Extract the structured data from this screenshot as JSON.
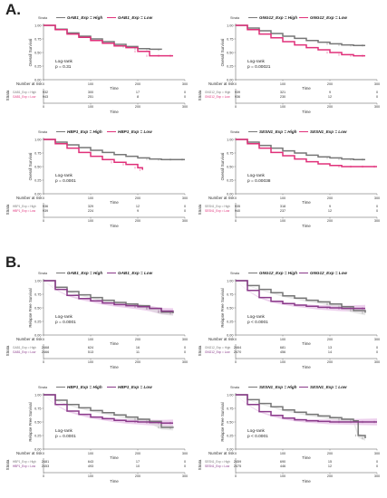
{
  "sections": [
    {
      "letter": "A.",
      "panels": [
        {
          "gene_high": "GAB1_Exp = High",
          "gene_low": "GAB1_Exp = Low",
          "ylabel": "Overall Survival",
          "xlabel": "Time",
          "logrank_label": "Log-rank",
          "p": "p = 0.31",
          "risk_title": "Number at risk",
          "risk_high": [
            "932",
            "300",
            "17",
            "0"
          ],
          "risk_low": [
            "943",
            "251",
            "8",
            "0"
          ],
          "strata_high": "GAB1_Exp = High",
          "strata_low": "GAB1_Exp = Low"
        },
        {
          "gene_high": "GNG12_Exp = High",
          "gene_low": "GNG12_Exp = Low",
          "ylabel": "Overall Survival",
          "xlabel": "Time",
          "logrank_label": "Log-rank",
          "p": "p = 0.00021",
          "risk_title": "Number at risk",
          "risk_high": [
            "939",
            "321",
            "9",
            "0"
          ],
          "risk_low": [
            "936",
            "230",
            "12",
            "0"
          ],
          "strata_high": "GNG12_Exp = High",
          "strata_low": "GNG12_Exp = Low"
        },
        {
          "gene_high": "HBP1_Exp = High",
          "gene_low": "HBP1_Exp = Low",
          "ylabel": "Overall Survival",
          "xlabel": "Time",
          "logrank_label": "Log-rank",
          "p": "p = 0.0001",
          "risk_title": "Number at risk",
          "risk_high": [
            "936",
            "329",
            "12",
            "0"
          ],
          "risk_low": [
            "939",
            "224",
            "9",
            "0"
          ],
          "strata_high": "HBP1_Exp = High",
          "strata_low": "HBP1_Exp = Low"
        },
        {
          "gene_high": "SESN1_Exp = High",
          "gene_low": "SESN1_Exp = Low",
          "ylabel": "Overall Survival",
          "xlabel": "Time",
          "logrank_label": "Log-rank",
          "p": "p = 0.00038",
          "risk_title": "Number at risk",
          "risk_high": [
            "935",
            "318",
            "9",
            "0"
          ],
          "risk_low": [
            "940",
            "237",
            "12",
            "0"
          ],
          "strata_high": "SESN1_Exp = High",
          "strata_low": "SESN1_Exp = Low"
        }
      ]
    },
    {
      "letter": "B.",
      "panels": [
        {
          "gene_high": "GAB1_Exp = High",
          "gene_low": "GAB1_Exp = Low",
          "ylabel": "Relapse Free Survival",
          "xlabel": "Time",
          "logrank_label": "Log-rank",
          "p": "p = 0.0001",
          "risk_title": "Number at risk",
          "risk_high": [
            "2468",
            "624",
            "16",
            "0"
          ],
          "risk_low": [
            "2466",
            "513",
            "11",
            "0"
          ],
          "strata_high": "GAB1_Exp = High",
          "strata_low": "GAB1_Exp = Low"
        },
        {
          "gene_high": "GNG12_Exp = High",
          "gene_low": "GNG12_Exp = Low",
          "ylabel": "Relapse Free Survival",
          "xlabel": "Time",
          "logrank_label": "Log-rank",
          "p": "p < 0.0001",
          "risk_title": "Number at risk",
          "risk_high": [
            "2464",
            "681",
            "13",
            "0"
          ],
          "risk_low": [
            "2470",
            "456",
            "14",
            "0"
          ],
          "strata_high": "GNG12_Exp = High",
          "strata_low": "GNG12_Exp = Low"
        },
        {
          "gene_high": "HBP1_Exp = High",
          "gene_low": "HBP1_Exp = Low",
          "ylabel": "Relapse Free Survival",
          "xlabel": "Time",
          "logrank_label": "Log-rank",
          "p": "p = 0.0001",
          "risk_title": "Number at risk",
          "risk_high": [
            "2481",
            "643",
            "17",
            "0"
          ],
          "risk_low": [
            "2453",
            "493",
            "10",
            "0"
          ],
          "strata_high": "HBP1_Exp = High",
          "strata_low": "HBP1_Exp = Low"
        },
        {
          "gene_high": "SESN1_Exp = High",
          "gene_low": "SESN1_Exp = Low",
          "ylabel": "Relapse Free Survival",
          "xlabel": "Time",
          "logrank_label": "Log-rank",
          "p": "p < 0.0001",
          "risk_title": "Number at risk",
          "risk_high": [
            "2459",
            "690",
            "15",
            "0"
          ],
          "risk_low": [
            "2475",
            "446",
            "12",
            "0"
          ],
          "strata_high": "SESN1_Exp = High",
          "strata_low": "SESN1_Exp = Low"
        }
      ]
    }
  ],
  "legend_label": "Strata",
  "colors": {
    "high": "#777777",
    "low": "#e0307a",
    "low_rfs": "#8a3a8a",
    "ci_rfs": "#e7c0e7"
  },
  "chart_data": [
    {
      "type": "line",
      "title": "",
      "ylabel": "Overall Survival",
      "xlabel": "Time",
      "xlim": [
        0,
        300
      ],
      "ylim": [
        0,
        1
      ],
      "x_ticks": [
        0,
        100,
        200,
        300
      ],
      "y_ticks": [
        0,
        0.25,
        0.5,
        0.75,
        1.0
      ],
      "series": [
        {
          "name": "GAB1_Exp = High",
          "x": [
            0,
            25,
            50,
            75,
            100,
            125,
            150,
            175,
            200,
            225,
            250
          ],
          "y": [
            1.0,
            0.93,
            0.86,
            0.8,
            0.75,
            0.7,
            0.65,
            0.61,
            0.57,
            0.56,
            0.55
          ]
        },
        {
          "name": "GAB1_Exp = Low",
          "x": [
            0,
            25,
            50,
            75,
            100,
            125,
            150,
            175,
            200,
            225,
            250,
            275
          ],
          "y": [
            1.0,
            0.92,
            0.84,
            0.78,
            0.72,
            0.67,
            0.62,
            0.59,
            0.52,
            0.44,
            0.44,
            0.44
          ]
        }
      ]
    },
    {
      "type": "line",
      "title": "",
      "ylabel": "Overall Survival",
      "xlabel": "Time",
      "xlim": [
        0,
        300
      ],
      "ylim": [
        0,
        1
      ],
      "x_ticks": [
        0,
        100,
        200,
        300
      ],
      "y_ticks": [
        0,
        0.25,
        0.5,
        0.75,
        1.0
      ],
      "series": [
        {
          "name": "GNG12_Exp = High",
          "x": [
            0,
            25,
            50,
            75,
            100,
            125,
            150,
            175,
            200,
            225,
            250,
            275
          ],
          "y": [
            1.0,
            0.95,
            0.9,
            0.85,
            0.8,
            0.76,
            0.72,
            0.69,
            0.66,
            0.64,
            0.63,
            0.63
          ]
        },
        {
          "name": "GNG12_Exp = Low",
          "x": [
            0,
            25,
            50,
            75,
            100,
            125,
            150,
            175,
            200,
            225,
            250,
            275
          ],
          "y": [
            1.0,
            0.92,
            0.84,
            0.77,
            0.7,
            0.64,
            0.59,
            0.55,
            0.5,
            0.46,
            0.44,
            0.44
          ]
        }
      ]
    },
    {
      "type": "line",
      "title": "",
      "ylabel": "Overall Survival",
      "xlabel": "Time",
      "xlim": [
        0,
        300
      ],
      "ylim": [
        0,
        1
      ],
      "x_ticks": [
        0,
        100,
        200,
        300
      ],
      "y_ticks": [
        0,
        0.25,
        0.5,
        0.75,
        1.0
      ],
      "series": [
        {
          "name": "HBP1_Exp = High",
          "x": [
            0,
            25,
            50,
            75,
            100,
            125,
            150,
            175,
            200,
            225,
            250,
            275,
            300
          ],
          "y": [
            1.0,
            0.95,
            0.9,
            0.85,
            0.8,
            0.76,
            0.72,
            0.69,
            0.66,
            0.64,
            0.63,
            0.63,
            0.63
          ]
        },
        {
          "name": "HBP1_Exp = Low",
          "x": [
            0,
            25,
            50,
            75,
            100,
            125,
            150,
            175,
            200,
            210
          ],
          "y": [
            1.0,
            0.92,
            0.84,
            0.76,
            0.69,
            0.63,
            0.58,
            0.54,
            0.48,
            0.44
          ]
        }
      ]
    },
    {
      "type": "line",
      "title": "",
      "ylabel": "Overall Survival",
      "xlabel": "Time",
      "xlim": [
        0,
        300
      ],
      "ylim": [
        0,
        1
      ],
      "x_ticks": [
        0,
        100,
        200,
        300
      ],
      "y_ticks": [
        0,
        0.25,
        0.5,
        0.75,
        1.0
      ],
      "series": [
        {
          "name": "SESN1_Exp = High",
          "x": [
            0,
            25,
            50,
            75,
            100,
            125,
            150,
            175,
            200,
            225,
            250,
            275
          ],
          "y": [
            1.0,
            0.95,
            0.89,
            0.84,
            0.79,
            0.75,
            0.71,
            0.68,
            0.66,
            0.64,
            0.63,
            0.63
          ]
        },
        {
          "name": "SESN1_Exp = Low",
          "x": [
            0,
            25,
            50,
            75,
            100,
            125,
            150,
            175,
            200,
            225,
            250,
            275,
            300
          ],
          "y": [
            1.0,
            0.92,
            0.84,
            0.76,
            0.7,
            0.64,
            0.59,
            0.55,
            0.52,
            0.5,
            0.5,
            0.5,
            0.5
          ]
        }
      ]
    },
    {
      "type": "line",
      "title": "",
      "ylabel": "Relapse Free Survival",
      "xlabel": "Time",
      "xlim": [
        0,
        300
      ],
      "ylim": [
        0,
        1
      ],
      "x_ticks": [
        0,
        100,
        200,
        300
      ],
      "y_ticks": [
        0,
        0.25,
        0.5,
        0.75,
        1.0
      ],
      "series": [
        {
          "name": "GAB1_Exp = High",
          "x": [
            0,
            25,
            50,
            75,
            100,
            125,
            150,
            175,
            200,
            225,
            250,
            275
          ],
          "y": [
            1.0,
            0.88,
            0.8,
            0.74,
            0.69,
            0.64,
            0.6,
            0.57,
            0.54,
            0.49,
            0.42,
            0.4
          ]
        },
        {
          "name": "GAB1_Exp = Low",
          "x": [
            0,
            25,
            50,
            75,
            100,
            125,
            150,
            175,
            200,
            225,
            250,
            275
          ],
          "y": [
            1.0,
            0.84,
            0.73,
            0.67,
            0.63,
            0.59,
            0.56,
            0.54,
            0.52,
            0.49,
            0.44,
            0.43
          ]
        }
      ]
    },
    {
      "type": "line",
      "title": "",
      "ylabel": "Relapse Free Survival",
      "xlabel": "Time",
      "xlim": [
        0,
        300
      ],
      "ylim": [
        0,
        1
      ],
      "x_ticks": [
        0,
        100,
        200,
        300
      ],
      "y_ticks": [
        0,
        0.25,
        0.5,
        0.75,
        1.0
      ],
      "series": [
        {
          "name": "GNG12_Exp = High",
          "x": [
            0,
            25,
            50,
            75,
            100,
            125,
            150,
            175,
            200,
            225,
            250,
            275
          ],
          "y": [
            1.0,
            0.91,
            0.84,
            0.78,
            0.72,
            0.68,
            0.64,
            0.61,
            0.57,
            0.52,
            0.45,
            0.41
          ]
        },
        {
          "name": "GNG12_Exp = Low",
          "x": [
            0,
            25,
            50,
            75,
            100,
            125,
            150,
            175,
            200,
            225,
            250,
            275
          ],
          "y": [
            1.0,
            0.82,
            0.69,
            0.62,
            0.58,
            0.55,
            0.53,
            0.51,
            0.5,
            0.49,
            0.49,
            0.49
          ]
        }
      ]
    },
    {
      "type": "line",
      "title": "",
      "ylabel": "Relapse Free Survival",
      "xlabel": "Time",
      "xlim": [
        0,
        300
      ],
      "ylim": [
        0,
        1
      ],
      "x_ticks": [
        0,
        100,
        200,
        300
      ],
      "y_ticks": [
        0,
        0.25,
        0.5,
        0.75,
        1.0
      ],
      "series": [
        {
          "name": "HBP1_Exp = High",
          "x": [
            0,
            25,
            50,
            75,
            100,
            125,
            150,
            175,
            200,
            225,
            250,
            275
          ],
          "y": [
            1.0,
            0.9,
            0.82,
            0.76,
            0.71,
            0.67,
            0.63,
            0.59,
            0.55,
            0.51,
            0.4,
            0.39
          ]
        },
        {
          "name": "HBP1_Exp = Low",
          "x": [
            0,
            25,
            50,
            75,
            100,
            125,
            150,
            175,
            200,
            225,
            250,
            275
          ],
          "y": [
            1.0,
            0.82,
            0.7,
            0.64,
            0.59,
            0.56,
            0.53,
            0.51,
            0.5,
            0.49,
            0.48,
            0.48
          ]
        }
      ]
    },
    {
      "type": "line",
      "title": "",
      "ylabel": "Relapse Free Survival",
      "xlabel": "Time",
      "xlim": [
        0,
        300
      ],
      "ylim": [
        0,
        1
      ],
      "x_ticks": [
        0,
        100,
        200,
        300
      ],
      "y_ticks": [
        0,
        0.25,
        0.5,
        0.75,
        1.0
      ],
      "series": [
        {
          "name": "SESN1_Exp = High",
          "x": [
            0,
            25,
            50,
            75,
            100,
            125,
            150,
            175,
            200,
            225,
            250,
            260,
            275
          ],
          "y": [
            1.0,
            0.91,
            0.84,
            0.78,
            0.72,
            0.68,
            0.64,
            0.61,
            0.58,
            0.55,
            0.52,
            0.25,
            0.2
          ]
        },
        {
          "name": "SESN1_Exp = Low",
          "x": [
            0,
            25,
            50,
            75,
            100,
            125,
            150,
            175,
            200,
            225,
            250,
            275,
            300
          ],
          "y": [
            1.0,
            0.82,
            0.69,
            0.62,
            0.57,
            0.54,
            0.52,
            0.51,
            0.5,
            0.5,
            0.5,
            0.5,
            0.5
          ]
        }
      ]
    }
  ]
}
